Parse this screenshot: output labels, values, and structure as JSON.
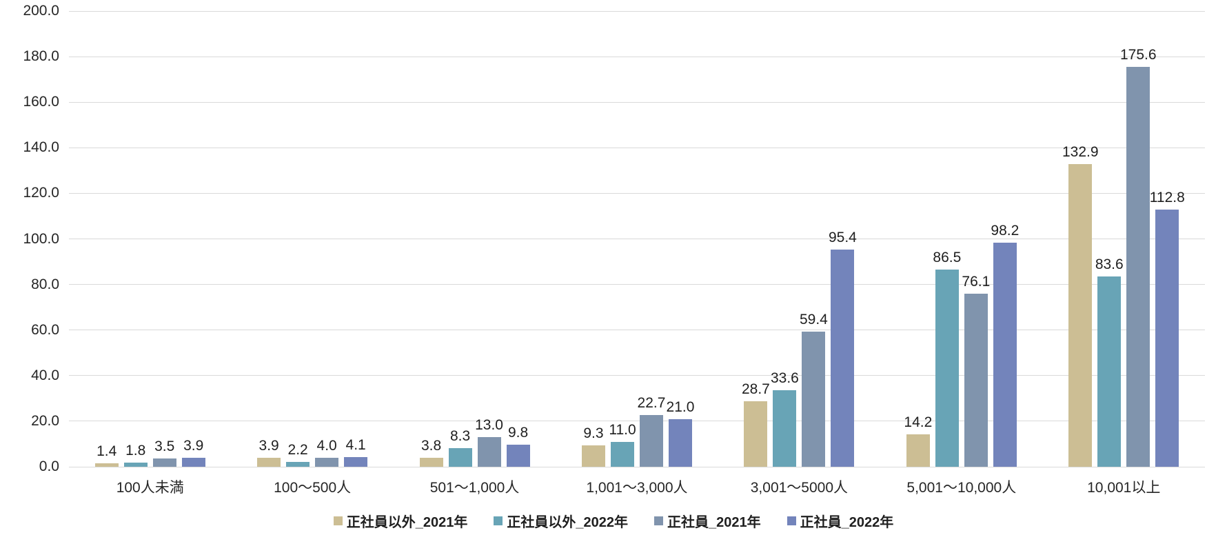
{
  "chart_data": {
    "type": "bar",
    "title": "",
    "xlabel": "",
    "ylabel": "",
    "ylim": [
      0,
      200
    ],
    "ytick_step": 20,
    "ytick_labels": [
      "0.0",
      "20.0",
      "40.0",
      "60.0",
      "80.0",
      "100.0",
      "120.0",
      "140.0",
      "160.0",
      "180.0",
      "200.0"
    ],
    "grid": true,
    "legend_position": "bottom",
    "value_labels_shown": true,
    "value_label_decimals": 1,
    "categories": [
      "100人未満",
      "100〜500人",
      "501〜1,000人",
      "1,001〜3,000人",
      "3,001〜5000人",
      "5,001〜10,000人",
      "10,001以上"
    ],
    "series": [
      {
        "name": "正社員以外_2021年",
        "color": "#ccbe94",
        "values": [
          1.4,
          3.9,
          3.8,
          9.3,
          28.7,
          14.2,
          132.9
        ]
      },
      {
        "name": "正社員以外_2022年",
        "color": "#68a4b6",
        "values": [
          1.8,
          2.2,
          8.3,
          11.0,
          33.6,
          86.5,
          83.6
        ]
      },
      {
        "name": "正社員_2021年",
        "color": "#8094ad",
        "values": [
          3.5,
          4.0,
          13.0,
          22.7,
          59.4,
          76.1,
          175.6
        ]
      },
      {
        "name": "正社員_2022年",
        "color": "#7384bb",
        "values": [
          3.9,
          4.1,
          9.8,
          21.0,
          95.4,
          98.2,
          112.8
        ]
      }
    ],
    "colors": {
      "gridline": "#d9d9d9",
      "axis_text": "#262626",
      "value_label_text": "#1f1f1f",
      "background": "#ffffff"
    }
  }
}
